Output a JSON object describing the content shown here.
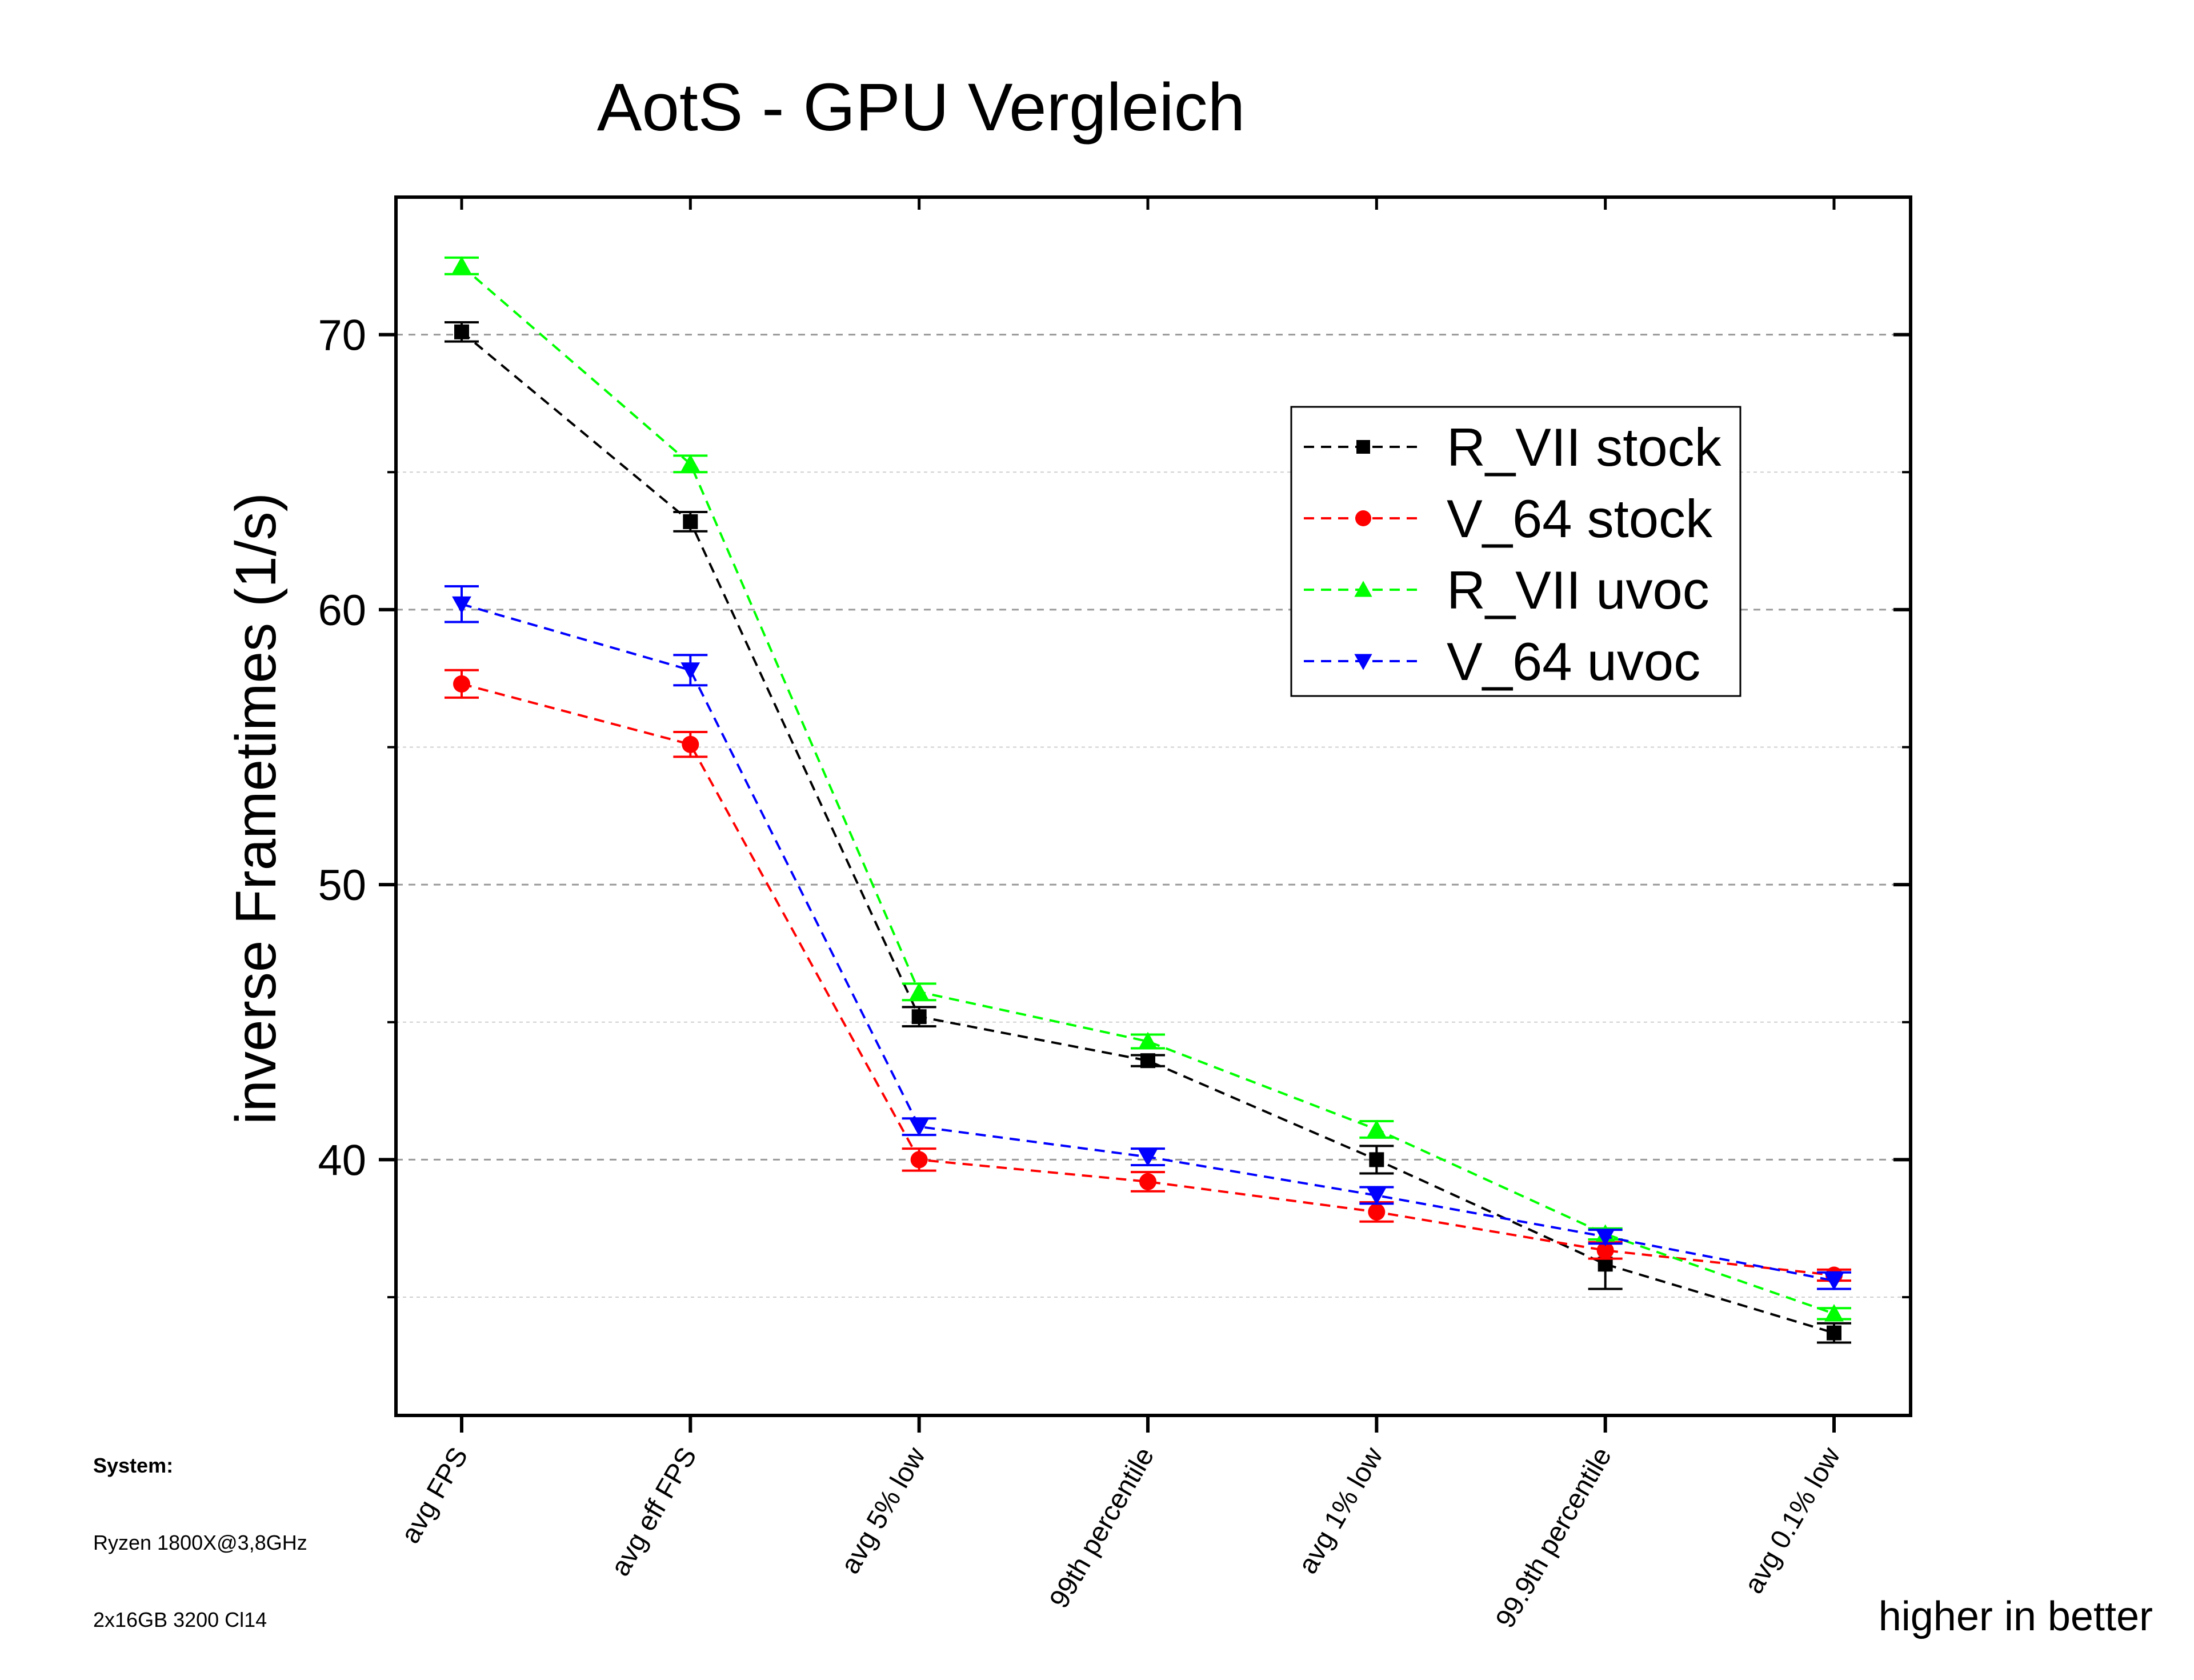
{
  "chart_data": {
    "type": "line",
    "title": "AotS - GPU Vergleich",
    "xlabel": "",
    "ylabel": "inverse Frametimes (1/s)",
    "ylim": [
      30.7,
      75
    ],
    "yticks_major": [
      40,
      50,
      60,
      70
    ],
    "yticks_minor": [
      35,
      45,
      55,
      65
    ],
    "grid": true,
    "categories": [
      "avg FPS",
      "avg eff FPS",
      "avg 5% low",
      "99th percentile",
      "avg 1% low",
      "99.9th percentile",
      "avg 0.1% low"
    ],
    "series": [
      {
        "name": "R_VII stock",
        "color": "#000000",
        "marker": "square",
        "values": [
          70.1,
          63.2,
          45.2,
          43.6,
          40.0,
          36.2,
          33.7
        ],
        "errors": [
          0.35,
          0.35,
          0.35,
          0.2,
          0.5,
          0.9,
          0.35
        ]
      },
      {
        "name": "V_64 stock",
        "color": "#ff0000",
        "marker": "circle",
        "values": [
          57.3,
          55.1,
          40.0,
          39.2,
          38.1,
          36.7,
          35.8
        ],
        "errors": [
          0.5,
          0.45,
          0.4,
          0.35,
          0.35,
          0.3,
          0.2
        ]
      },
      {
        "name": "R_VII uvoc",
        "color": "#00ff00",
        "marker": "triangle-up",
        "values": [
          72.5,
          65.3,
          46.1,
          44.3,
          41.1,
          37.3,
          34.4
        ],
        "errors": [
          0.3,
          0.3,
          0.3,
          0.25,
          0.3,
          0.2,
          0.2
        ]
      },
      {
        "name": "V_64 uvoc",
        "color": "#0000ff",
        "marker": "triangle-down",
        "values": [
          60.2,
          57.8,
          41.2,
          40.1,
          38.7,
          37.2,
          35.6
        ],
        "errors": [
          0.65,
          0.55,
          0.3,
          0.3,
          0.3,
          0.25,
          0.3
        ]
      }
    ],
    "legend_position": "upper-right",
    "annotation": "higher in better"
  },
  "system_info": {
    "heading": "System:",
    "lines": [
      "Ryzen 1800X@3,8GHz",
      "2x16GB 3200 Cl14"
    ]
  }
}
